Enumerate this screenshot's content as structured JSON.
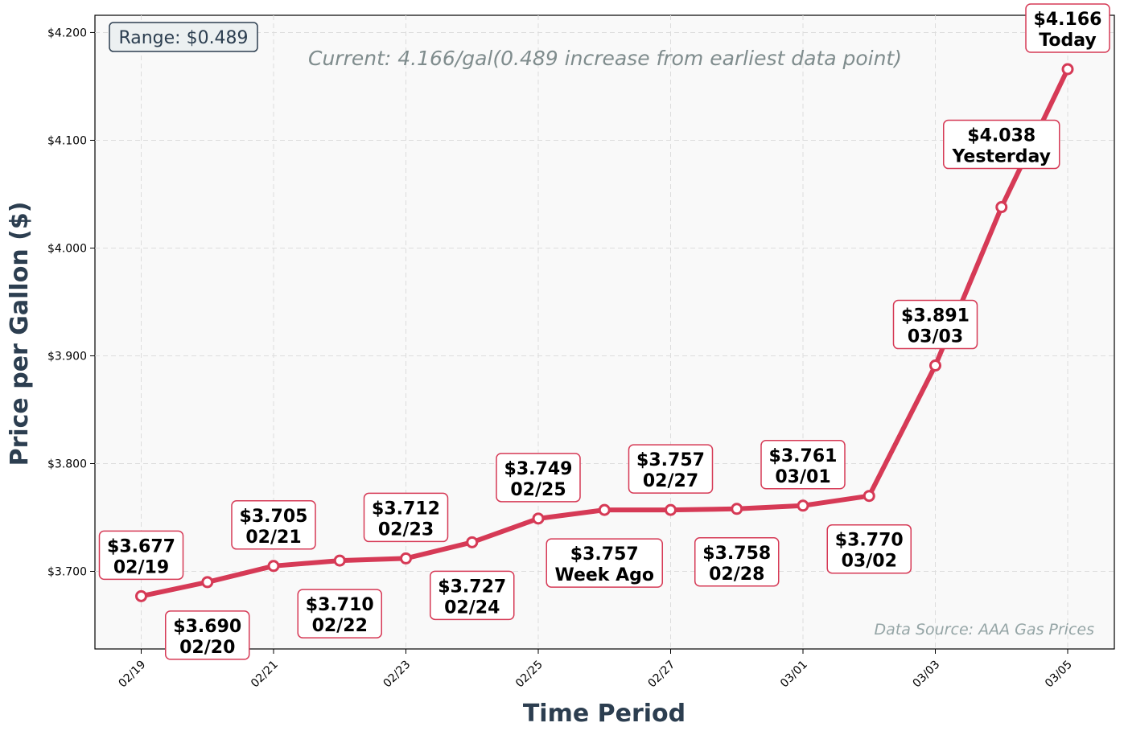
{
  "chart_data": {
    "type": "line",
    "title": "",
    "subtitle": "Current: 4.166/gal(0.489 increase from earliest data point)",
    "xlabel": "Time Period",
    "ylabel": "Price per Gallon ($)",
    "range_label": "Range: $0.489",
    "source_label": "Data Source: AAA Gas Prices",
    "ylim": [
      3.628,
      4.216
    ],
    "y_ticks": [
      3.7,
      3.8,
      3.9,
      4.0,
      4.1,
      4.2
    ],
    "y_tick_labels": [
      "$3.700",
      "$3.800",
      "$3.900",
      "$4.000",
      "$4.100",
      "$4.200"
    ],
    "x_tick_labels": [
      "02/19",
      "02/21",
      "02/23",
      "02/25",
      "02/27",
      "03/01",
      "03/03",
      "03/05"
    ],
    "x_tick_indices": [
      0,
      2,
      4,
      6,
      8,
      10,
      12,
      14
    ],
    "grid": true,
    "line_color": "#d63a56",
    "series": [
      {
        "values": [
          3.677,
          3.69,
          3.705,
          3.71,
          3.712,
          3.727,
          3.749,
          3.757,
          3.757,
          3.758,
          3.761,
          3.77,
          3.891,
          4.038,
          4.166
        ],
        "point_labels": [
          [
            "$3.677",
            "02/19"
          ],
          [
            "$3.690",
            "02/20"
          ],
          [
            "$3.705",
            "02/21"
          ],
          [
            "$3.710",
            "02/22"
          ],
          [
            "$3.712",
            "02/23"
          ],
          [
            "$3.727",
            "02/24"
          ],
          [
            "$3.749",
            "02/25"
          ],
          [
            "$3.757",
            "Week Ago"
          ],
          [
            "$3.757",
            "02/27"
          ],
          [
            "$3.758",
            "02/28"
          ],
          [
            "$3.761",
            "03/01"
          ],
          [
            "$3.770",
            "03/02"
          ],
          [
            "$3.891",
            "03/03"
          ],
          [
            "$4.038",
            "Yesterday"
          ],
          [
            "$4.166",
            "Today"
          ]
        ]
      }
    ]
  }
}
